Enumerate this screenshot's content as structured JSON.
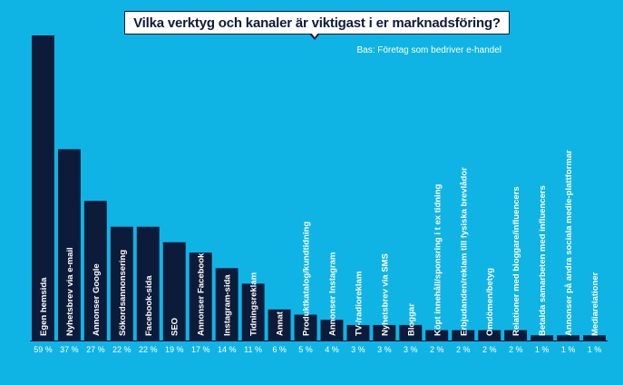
{
  "chart_data": {
    "type": "bar",
    "title": "Vilka verktyg och kanaler är viktigast i er marknadsföring?",
    "subtitle": "Bas: Företag som bedriver e-handel",
    "categories": [
      "Egen hemsida",
      "Nyhetsbrev via e-mail",
      "Annonser Google",
      "Sökordsannonsering",
      "Facebook-sida",
      "SEO",
      "Annonser Facebook",
      "Instagram-sida",
      "Tidningsreklam",
      "Annat",
      "Produktkatalog/kundtidning",
      "Annonser Instagram",
      "TV-/radioreklam",
      "Nyhetsbrev via SMS",
      "Bloggar",
      "Köpt innehåll/sponsring i t ex tidning",
      "Erbjudanden/reklam till fysiska brevlådor",
      "Omdömen/betyg",
      "Relationer med bloggare/influencers",
      "Betalda samarbeten med influencers",
      "Annonser på andra sociala medie-plattformar",
      "Mediarelationer"
    ],
    "values": [
      59,
      37,
      27,
      22,
      22,
      19,
      17,
      14,
      11,
      6,
      5,
      4,
      3,
      3,
      3,
      2,
      2,
      2,
      2,
      1,
      1,
      1
    ],
    "value_labels": [
      "59 %",
      "37 %",
      "27 %",
      "22 %",
      "22 %",
      "19 %",
      "17 %",
      "14 %",
      "11 %",
      "6 %",
      "5 %",
      "4 %",
      "3 %",
      "3 %",
      "3 %",
      "2 %",
      "2 %",
      "2 %",
      "2 %",
      "1 %",
      "1 %",
      "1 %"
    ],
    "ylim": [
      0,
      59
    ],
    "grid": false,
    "colors": {
      "background": "#10b4e4",
      "bar": "#0d1b3a",
      "label": "#ffffff"
    }
  }
}
